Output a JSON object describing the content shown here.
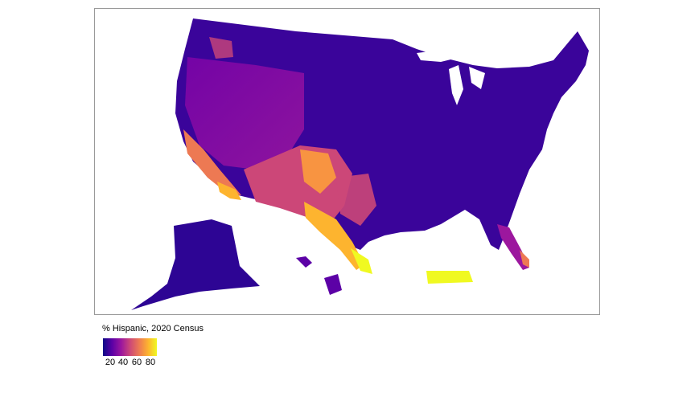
{
  "legend": {
    "title": "% Hispanic, 2020 Census",
    "ticks": [
      "20",
      "40",
      "60",
      "80"
    ]
  },
  "colors": {
    "scale": [
      "#0d0887",
      "#5c01a6",
      "#9c179e",
      "#cc4778",
      "#ed7953",
      "#fdb42f",
      "#f0f921"
    ],
    "border": "#999999",
    "background": "#ffffff"
  },
  "regions": [
    "contiguous-us",
    "alaska",
    "hawaii",
    "puerto-rico"
  ]
}
